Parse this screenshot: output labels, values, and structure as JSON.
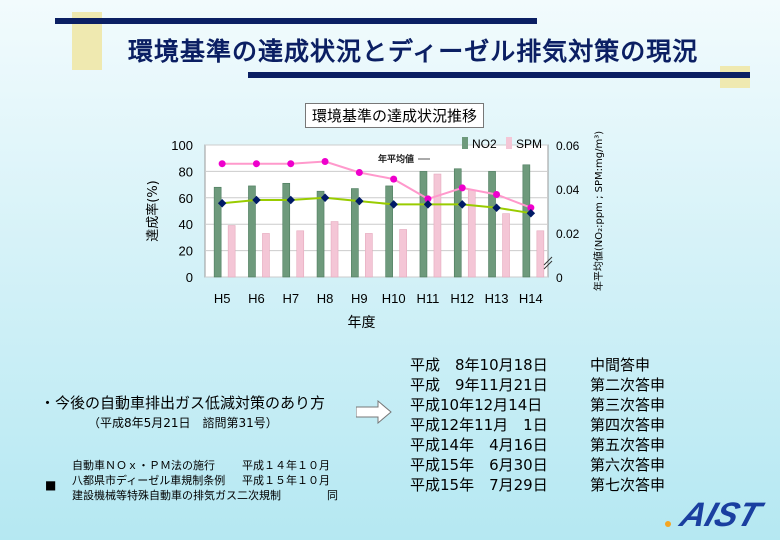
{
  "slide": {
    "title": "環境基準の達成状況とディーゼル排気対策の現況",
    "chart_title": "環境基準の達成状況推移"
  },
  "chart_data": {
    "type": "bar",
    "title": "環境基準の達成状況推移",
    "categories": [
      "H5",
      "H6",
      "H7",
      "H8",
      "H9",
      "H10",
      "H11",
      "H12",
      "H13",
      "H14"
    ],
    "xlabel": "年度",
    "ylabel": "達成率(%)",
    "ylabel_right": "年平均値(NO₂:ppm ; SPM:mg/m³)",
    "ylim": [
      0,
      100
    ],
    "ylim_right": [
      0,
      0.06
    ],
    "yticks": [
      "0",
      "20",
      "40",
      "60",
      "80",
      "100"
    ],
    "yticks_right": [
      "0",
      "0.02",
      "0.04",
      "0.06"
    ],
    "series": [
      {
        "name": "NO2",
        "kind": "bar",
        "axis": "left",
        "color": "#6e9a7c",
        "values": [
          68,
          69,
          71,
          65,
          67,
          69,
          80,
          82,
          80,
          85
        ]
      },
      {
        "name": "SPM",
        "kind": "bar",
        "axis": "left",
        "color": "#f4c6d6",
        "values": [
          39,
          33,
          35,
          42,
          33,
          36,
          78,
          66,
          48,
          35
        ]
      },
      {
        "name": "年平均値",
        "kind": "line",
        "axis": "right",
        "color": "#ff66cc",
        "values": [
          0.0515,
          0.0515,
          0.0515,
          0.0525,
          0.0475,
          0.0445,
          0.0355,
          0.0405,
          0.0375,
          0.0315
        ]
      },
      {
        "name": "年平均値(NO2)",
        "kind": "line",
        "axis": "right",
        "color": "#99cc00",
        "values": [
          0.0335,
          0.035,
          0.035,
          0.036,
          0.0345,
          0.033,
          0.033,
          0.033,
          0.0315,
          0.029
        ]
      }
    ],
    "annotation": "年平均値",
    "legend": "top-right"
  },
  "policy": {
    "heading": "・今後の自動車排出ガス低減対策のあり方",
    "sub": "（平成8年5月21日　諮問第31号）"
  },
  "reports": [
    {
      "date": "平成　8年10月18日",
      "label": "中間答申"
    },
    {
      "date": "平成　9年11月21日",
      "label": "第二次答申"
    },
    {
      "date": "平成10年12月14日",
      "label": "第三次答申"
    },
    {
      "date": "平成12年11月　1日",
      "label": "第四次答申"
    },
    {
      "date": "平成14年　4月16日",
      "label": "第五次答申"
    },
    {
      "date": "平成15年　6月30日",
      "label": "第六次答申"
    },
    {
      "date": "平成15年　7月29日",
      "label": "第七次答申"
    }
  ],
  "regulations": [
    {
      "name": "自動車ＮＯｘ・ＰＭ法の施行",
      "date": "平成１４年１０月"
    },
    {
      "name": "八都県市ディーゼル車規制条例",
      "date": "平成１５年１０月"
    },
    {
      "name": "建設機械等特殊自動車の排気ガス二次規制",
      "date": "同"
    }
  ],
  "bullet_mark": "■",
  "logo_text": "AIST",
  "colors": {
    "accent_dark": "#0b1f63",
    "deco": "#efe9b0",
    "logo": "#1a3fa0"
  }
}
